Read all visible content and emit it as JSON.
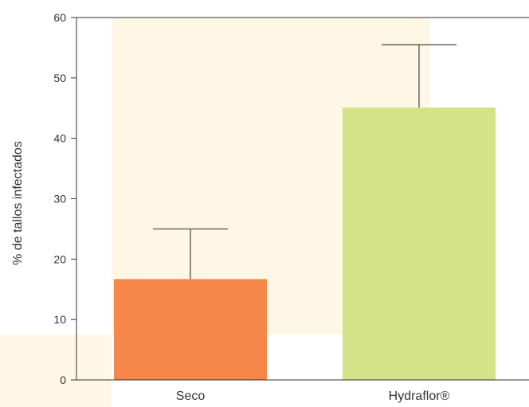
{
  "chart_data": {
    "type": "bar",
    "categories": [
      "Seco",
      "Hydraflor®"
    ],
    "values": [
      16.7,
      45.1
    ],
    "error_upper": [
      25.0,
      55.5
    ],
    "ylabel": "% de tallos infectados",
    "xlabel": "",
    "title": "",
    "ylim": [
      0,
      60
    ],
    "yticks": [
      0,
      10,
      20,
      30,
      40,
      50,
      60
    ],
    "grid": false,
    "legend": "none",
    "colors": {
      "bars": [
        "#f5874a",
        "#d4e387"
      ],
      "background": "#fef7e6"
    }
  }
}
